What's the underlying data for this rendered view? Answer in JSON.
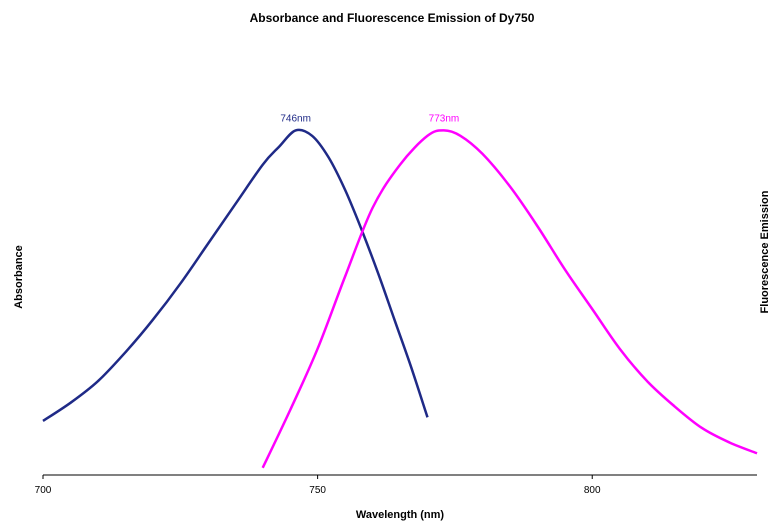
{
  "chart_data": {
    "type": "line",
    "title": "Absorbance and Fluorescence Emission of Dy750",
    "xlabel": "Wavelength (nm)",
    "ylabel_left": "Absorbance",
    "ylabel_right": "Fluorescence Emission",
    "xlim": [
      700,
      830
    ],
    "ylim": [
      0,
      1.15
    ],
    "x_ticks": [
      700,
      750,
      800
    ],
    "grid": false,
    "series": [
      {
        "color": "#1f2a87",
        "peak_label": "746nm",
        "x": [
          700,
          705,
          710,
          715,
          720,
          725,
          730,
          735,
          740,
          743,
          746,
          749,
          752,
          755,
          758,
          761,
          764,
          767,
          770
        ],
        "y": [
          0.15,
          0.2,
          0.26,
          0.34,
          0.43,
          0.53,
          0.64,
          0.75,
          0.86,
          0.91,
          0.955,
          0.94,
          0.88,
          0.79,
          0.68,
          0.56,
          0.43,
          0.3,
          0.16
        ]
      },
      {
        "color": "#ff00ff",
        "peak_label": "773nm",
        "x": [
          740,
          745,
          750,
          755,
          760,
          765,
          770,
          773,
          776,
          780,
          785,
          790,
          795,
          800,
          805,
          810,
          815,
          820,
          825,
          830
        ],
        "y": [
          0.02,
          0.18,
          0.35,
          0.55,
          0.74,
          0.86,
          0.94,
          0.955,
          0.94,
          0.89,
          0.8,
          0.69,
          0.57,
          0.46,
          0.35,
          0.26,
          0.19,
          0.13,
          0.09,
          0.06
        ]
      }
    ]
  }
}
